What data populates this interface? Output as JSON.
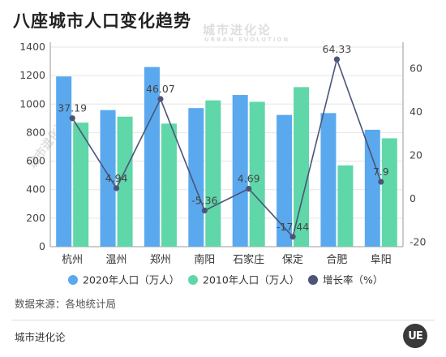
{
  "title": "八座城市人口变化趋势",
  "watermark": {
    "text": "城市进化论",
    "sub": "URBAN EVOLUTION"
  },
  "source": "数据来源：各地统计局",
  "footer": "城市进化论",
  "logo_text": "UE",
  "colors": {
    "series_2020": "#5aa9ee",
    "series_2010": "#5fd7a9",
    "growth_line": "#4a5578",
    "grid": "#e6e6e6",
    "axis": "#999999"
  },
  "chart_data": {
    "type": "bar",
    "categories": [
      "杭州",
      "温州",
      "郑州",
      "南阳",
      "石家庄",
      "保定",
      "合肥",
      "阜阳"
    ],
    "series": [
      {
        "name": "2020年人口（万人）",
        "type": "bar",
        "axis": "left",
        "values": [
          1194,
          958,
          1260,
          972,
          1064,
          924,
          937,
          820
        ]
      },
      {
        "name": "2010年人口（万人）",
        "type": "bar",
        "axis": "left",
        "values": [
          870,
          912,
          863,
          1026,
          1016,
          1119,
          570,
          760
        ]
      },
      {
        "name": "增长率（%）",
        "type": "line",
        "axis": "right",
        "values": [
          37.19,
          4.94,
          46.07,
          -5.36,
          4.69,
          -17.44,
          64.33,
          7.9
        ],
        "labels": [
          "37.19",
          "4.94",
          "46.07",
          "-5.36",
          "4.69",
          "-17.44",
          "64.33",
          "7.9"
        ]
      }
    ],
    "left_axis": {
      "ticks": [
        0,
        200,
        400,
        600,
        800,
        1000,
        1200,
        1400
      ],
      "range": [
        0,
        1400
      ]
    },
    "right_axis": {
      "ticks": [
        -20,
        0,
        20,
        40,
        60
      ],
      "range": [
        -22,
        70
      ]
    },
    "grid": true,
    "legend_position": "bottom"
  }
}
